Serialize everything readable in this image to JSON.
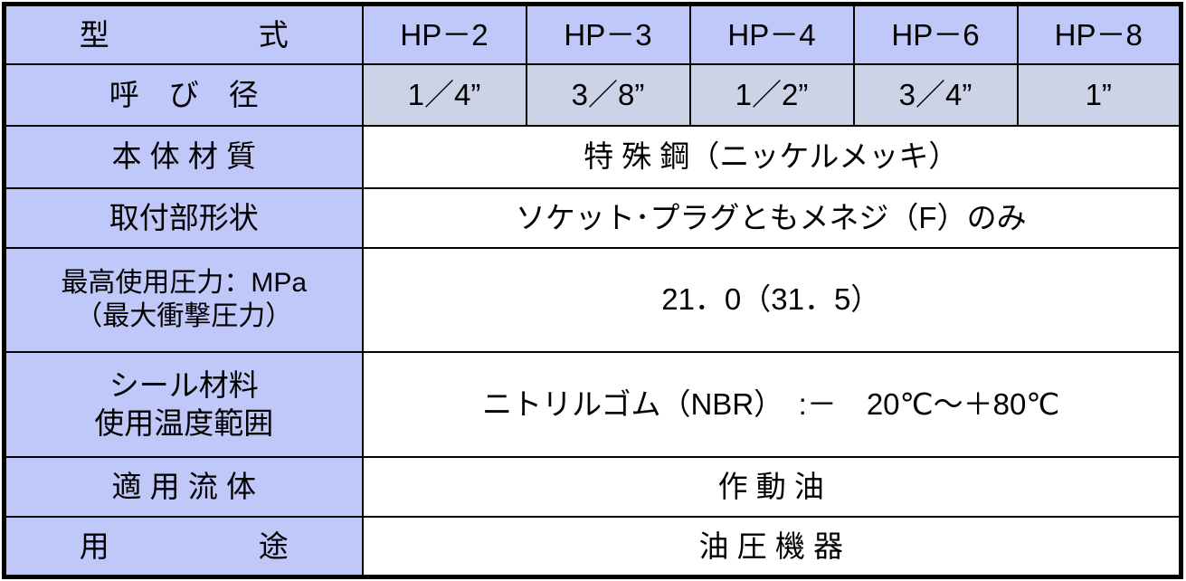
{
  "colors": {
    "header_bg": "#c0c7f9",
    "size_row_bg": "#cdd3e7",
    "body_bg": "#ffffff",
    "border": "#000000"
  },
  "rows": {
    "model": {
      "label": "型　　　　　式",
      "values": [
        "HP－2",
        "HP－3",
        "HP－4",
        "HP－6",
        "HP－8"
      ]
    },
    "size": {
      "label": "呼　び　径",
      "values": [
        "1／4”",
        "3／8”",
        "1／2”",
        "3／4”",
        "1”"
      ]
    },
    "body_material": {
      "label": "本 体 材 質",
      "value": "特 殊 鋼（ニッケルメッキ）"
    },
    "connection": {
      "label": "取付部形状",
      "value": "ソケット･プラグともメネジ（F）のみ"
    },
    "pressure": {
      "label_line1": "最高使用圧力：MPa",
      "label_line2": "（最大衝撃圧力）",
      "value": "21．0（31．5）"
    },
    "seal": {
      "label_line1": "シール材料",
      "label_line2": "使用温度範囲",
      "value": "ニトリルゴム（NBR）　:－　20℃～＋80℃"
    },
    "fluid": {
      "label": "適 用 流 体",
      "value": "作 動 油"
    },
    "application": {
      "label": "用　　　　　途",
      "value": "油 圧 機 器"
    }
  }
}
